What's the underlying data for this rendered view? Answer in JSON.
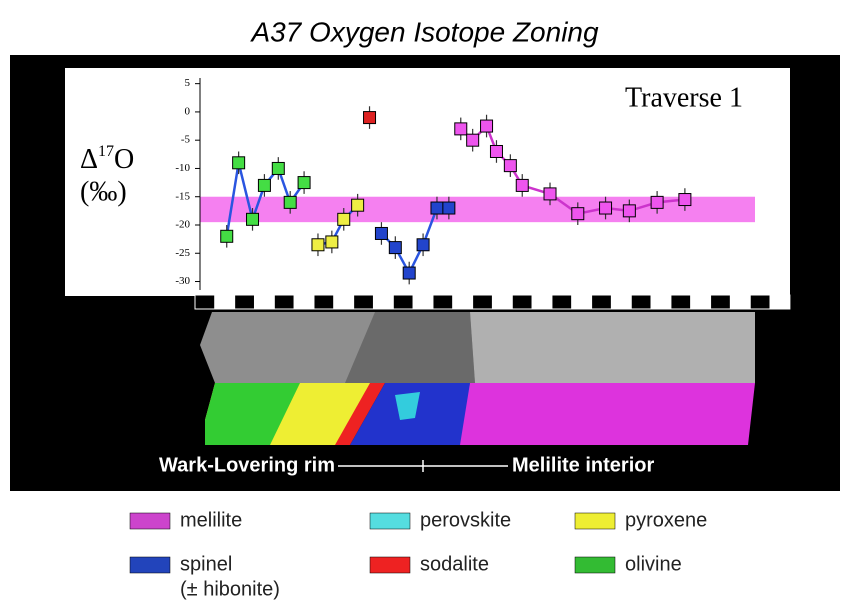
{
  "chart_data": {
    "type": "scatter",
    "title": "A37 Oxygen Isotope Zoning",
    "ylabel_parts": [
      "Δ",
      "17",
      "O"
    ],
    "yunit": "(‰)",
    "annotation": "Traverse 1",
    "xlim": [
      0,
      30
    ],
    "ylim": [
      -31.5,
      6
    ],
    "yticks": [
      5,
      0,
      -5,
      -10,
      -15,
      -20,
      -25,
      -30
    ],
    "band": {
      "values": [
        -19.5,
        -15
      ],
      "color": "#f580f0"
    },
    "series": [
      {
        "color": "#44dd44",
        "line_color": "#2a55e0",
        "error": 2,
        "x": [
          1.6,
          2.2,
          2.9,
          3.5,
          4.2,
          4.8,
          5.5
        ],
        "values": [
          -22,
          -9,
          -19,
          -13,
          -10,
          -16,
          -12.5
        ]
      },
      {
        "color": "#eeee44",
        "line_color": "#2a55e0",
        "error": 2,
        "x": [
          6.2,
          6.9,
          7.5,
          8.2
        ],
        "values": [
          -23.5,
          -23,
          -19,
          -16.5
        ]
      },
      {
        "color": "#dd2222",
        "line_color": null,
        "error": 2,
        "x": [
          8.8
        ],
        "values": [
          -1
        ]
      },
      {
        "color": "#2244cc",
        "line_color": "#2a55e0",
        "error": 2,
        "x": [
          9.4,
          10.1,
          10.8,
          11.5,
          12.2,
          12.8
        ],
        "values": [
          -21.5,
          -24,
          -28.5,
          -23.5,
          -17,
          -17
        ]
      },
      {
        "color": "#ee55ee",
        "line_color": "#cc33cc",
        "error": 2,
        "x": [
          13.4,
          14.0,
          14.7,
          15.2,
          15.9,
          16.5,
          17.9,
          19.3,
          20.7,
          21.9,
          23.3,
          24.7
        ],
        "values": [
          -3,
          -5,
          -2.5,
          -7,
          -9.5,
          -13,
          -14.5,
          -18,
          -17,
          -17.5,
          -16,
          -15.5
        ]
      }
    ]
  },
  "image_caption": {
    "left": "Wark-Lovering rim",
    "right": "Melilite interior"
  },
  "legend": [
    {
      "name": "melilite",
      "color": "#cc44cc"
    },
    {
      "name": "perovskite",
      "color": "#55dde0"
    },
    {
      "name": "pyroxene",
      "color": "#eeee33"
    },
    {
      "name": "spinel",
      "note": "(± hibonite)",
      "color": "#2244bb"
    },
    {
      "name": "sodalite",
      "color": "#ee2222"
    },
    {
      "name": "olivine",
      "color": "#33bb33"
    }
  ]
}
